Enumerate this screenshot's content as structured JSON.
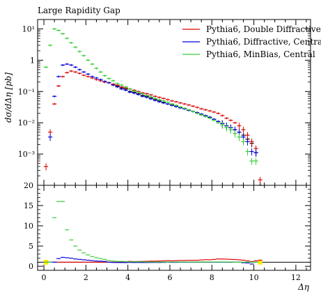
{
  "chart_data": {
    "type": "scatter",
    "title": "Large Rapidity Gap",
    "xlabel": "Δη",
    "ylabel": "dσ/dΔη [pb]",
    "legend_position": "top-right",
    "main": {
      "yscale": "log",
      "ylim": [
        0.0001,
        20
      ],
      "yticks": [
        {
          "v": 0.001,
          "label": "10⁻³"
        },
        {
          "v": 0.01,
          "label": "10⁻²"
        },
        {
          "v": 0.1,
          "label": "10⁻¹"
        },
        {
          "v": 1,
          "label": "1"
        },
        {
          "v": 10,
          "label": "10¹"
        }
      ]
    },
    "ratio": {
      "ylim": [
        -1,
        20
      ],
      "yticks": [
        0,
        5,
        10,
        15,
        20
      ]
    },
    "xlim": [
      -0.3,
      12.7
    ],
    "xticks": [
      0,
      2,
      4,
      6,
      8,
      10,
      12
    ],
    "reference": {
      "color": "#000000",
      "x": [
        3.1,
        3.3,
        3.5,
        3.7,
        3.9,
        4.1,
        4.3,
        4.5,
        4.7,
        4.9,
        5.1,
        5.3,
        5.5,
        5.7,
        5.9,
        6.1,
        6.3,
        6.5,
        6.7,
        6.9,
        7.1,
        7.3,
        7.5,
        7.7,
        7.9,
        8.1,
        8.3,
        8.5,
        8.7,
        8.9,
        9.1,
        9.3,
        9.5,
        9.7,
        9.9,
        10.1,
        10.3
      ],
      "y": [
        0.19,
        0.17,
        0.15,
        0.13,
        0.12,
        0.1,
        0.095,
        0.085,
        0.075,
        0.07,
        0.062,
        0.055,
        0.05,
        0.045,
        0.04,
        0.037,
        0.034,
        0.03,
        0.028,
        0.025,
        0.023,
        0.021,
        0.018,
        0.016,
        0.015,
        0.013,
        0.011,
        0.0095,
        0.008,
        0.007,
        0.006,
        0.005,
        0.004,
        0.003,
        0.0022,
        0.0011,
        0.0001
      ]
    },
    "series": [
      {
        "name": "Pythia6, Double Diffractive",
        "color": "#dd0000",
        "x": [
          0.1,
          0.3,
          0.5,
          0.7,
          0.9,
          1.1,
          1.3,
          1.5,
          1.7,
          1.9,
          2.1,
          2.3,
          2.5,
          2.7,
          2.9,
          3.1,
          3.3,
          3.5,
          3.7,
          3.9,
          4.1,
          4.3,
          4.5,
          4.7,
          4.9,
          5.1,
          5.3,
          5.5,
          5.7,
          5.9,
          6.1,
          6.3,
          6.5,
          6.7,
          6.9,
          7.1,
          7.3,
          7.5,
          7.7,
          7.9,
          8.1,
          8.3,
          8.5,
          8.7,
          8.9,
          9.1,
          9.3,
          9.5,
          9.7,
          9.9,
          10.1,
          10.3
        ],
        "y": [
          0.0004,
          0.005,
          0.04,
          0.15,
          0.3,
          0.4,
          0.45,
          0.42,
          0.38,
          0.33,
          0.3,
          0.27,
          0.24,
          0.22,
          0.2,
          0.19,
          0.17,
          0.16,
          0.14,
          0.13,
          0.12,
          0.11,
          0.1,
          0.09,
          0.085,
          0.078,
          0.07,
          0.065,
          0.06,
          0.055,
          0.05,
          0.047,
          0.043,
          0.04,
          0.037,
          0.034,
          0.031,
          0.028,
          0.026,
          0.024,
          0.022,
          0.02,
          0.017,
          0.014,
          0.012,
          0.01,
          0.008,
          0.006,
          0.004,
          0.0025,
          0.0015,
          0.00015
        ],
        "ratio": [
          1.0,
          1.0,
          1.0,
          1.0,
          1.0,
          1.0,
          1.0,
          1.0,
          1.0,
          1.0,
          1.0,
          1.0,
          1.0,
          1.0,
          1.0,
          1.0,
          1.0,
          1.07,
          1.08,
          1.08,
          1.2,
          1.16,
          1.18,
          1.2,
          1.21,
          1.26,
          1.27,
          1.3,
          1.33,
          1.38,
          1.35,
          1.38,
          1.43,
          1.43,
          1.48,
          1.48,
          1.48,
          1.56,
          1.63,
          1.6,
          1.69,
          1.82,
          1.79,
          1.75,
          1.71,
          1.67,
          1.6,
          1.5,
          1.33,
          1.14,
          1.36,
          1.5
        ]
      },
      {
        "name": "Pythia6, Diffractive, Central",
        "color": "#0000dd",
        "x": [
          0.3,
          0.5,
          0.7,
          0.9,
          1.1,
          1.3,
          1.5,
          1.7,
          1.9,
          2.1,
          2.3,
          2.5,
          2.7,
          2.9,
          3.1,
          3.3,
          3.5,
          3.7,
          3.9,
          4.1,
          4.3,
          4.5,
          4.7,
          4.9,
          5.1,
          5.3,
          5.5,
          5.7,
          5.9,
          6.1,
          6.3,
          6.5,
          6.7,
          6.9,
          7.1,
          7.3,
          7.5,
          7.7,
          7.9,
          8.1,
          8.3,
          8.5,
          8.7,
          8.9,
          9.1,
          9.3,
          9.5,
          9.7,
          9.9,
          10.1
        ],
        "y": [
          0.0035,
          0.07,
          0.3,
          0.7,
          0.75,
          0.7,
          0.6,
          0.5,
          0.42,
          0.36,
          0.3,
          0.27,
          0.24,
          0.21,
          0.19,
          0.16,
          0.14,
          0.12,
          0.11,
          0.095,
          0.088,
          0.08,
          0.07,
          0.065,
          0.058,
          0.052,
          0.047,
          0.043,
          0.04,
          0.036,
          0.033,
          0.03,
          0.028,
          0.025,
          0.023,
          0.021,
          0.019,
          0.017,
          0.015,
          0.013,
          0.011,
          0.0095,
          0.008,
          0.007,
          0.006,
          0.005,
          0.0035,
          0.0025,
          0.0012,
          0.0011
        ],
        "ratio": [
          1.0,
          1.0,
          1.9,
          2.2,
          2.1,
          2.0,
          1.8,
          1.7,
          1.6,
          1.5,
          1.4,
          1.3,
          1.25,
          1.2,
          1.0,
          0.94,
          0.93,
          0.92,
          0.92,
          0.95,
          0.93,
          0.94,
          0.93,
          0.93,
          0.94,
          0.95,
          0.94,
          0.96,
          1.0,
          0.97,
          0.97,
          1.0,
          1.0,
          1.0,
          1.0,
          1.0,
          1.06,
          1.06,
          1.0,
          1.0,
          1.0,
          1.0,
          1.0,
          1.0,
          1.0,
          1.0,
          0.88,
          0.83,
          0.55,
          1.0
        ]
      },
      {
        "name": "Pythia6, MinBias, Central",
        "color": "#33cc33",
        "x": [
          0.1,
          0.3,
          0.5,
          0.7,
          0.9,
          1.1,
          1.3,
          1.5,
          1.7,
          1.9,
          2.1,
          2.3,
          2.5,
          2.7,
          2.9,
          3.1,
          3.3,
          3.5,
          3.7,
          3.9,
          4.1,
          4.3,
          4.5,
          4.7,
          4.9,
          5.1,
          5.3,
          5.5,
          5.7,
          5.9,
          6.1,
          6.3,
          6.5,
          6.7,
          6.9,
          7.1,
          7.3,
          7.5,
          7.7,
          7.9,
          8.1,
          8.3,
          8.5,
          8.7,
          8.9,
          9.1,
          9.3,
          9.5,
          9.7,
          9.9,
          10.1
        ],
        "y": [
          0.6,
          3.0,
          10.0,
          9.0,
          7.0,
          5.0,
          3.6,
          2.6,
          1.9,
          1.4,
          1.0,
          0.75,
          0.55,
          0.42,
          0.32,
          0.26,
          0.22,
          0.18,
          0.16,
          0.14,
          0.12,
          0.105,
          0.095,
          0.085,
          0.075,
          0.068,
          0.06,
          0.055,
          0.05,
          0.045,
          0.04,
          0.036,
          0.032,
          0.029,
          0.026,
          0.023,
          0.02,
          0.018,
          0.016,
          0.014,
          0.012,
          0.01,
          0.0085,
          0.007,
          0.006,
          0.0045,
          0.0035,
          0.0025,
          0.0012,
          0.0006,
          0.0006
        ],
        "ratio": [
          1.0,
          1.0,
          12.0,
          16.0,
          16.0,
          9.0,
          6.5,
          5.0,
          4.0,
          3.3,
          2.8,
          2.4,
          2.1,
          1.9,
          1.7,
          1.4,
          1.3,
          1.2,
          1.2,
          1.15,
          1.1,
          1.1,
          1.1,
          1.1,
          1.05,
          1.05,
          1.05,
          1.05,
          1.05,
          1.05,
          1.05,
          1.05,
          1.05,
          1.05,
          1.05,
          1.05,
          1.05,
          1.05,
          1.05,
          1.05,
          1.05,
          1.05,
          1.05,
          1.05,
          1.05,
          1.0,
          1.0,
          1.0,
          1.0,
          1.0,
          1.0
        ]
      }
    ]
  }
}
